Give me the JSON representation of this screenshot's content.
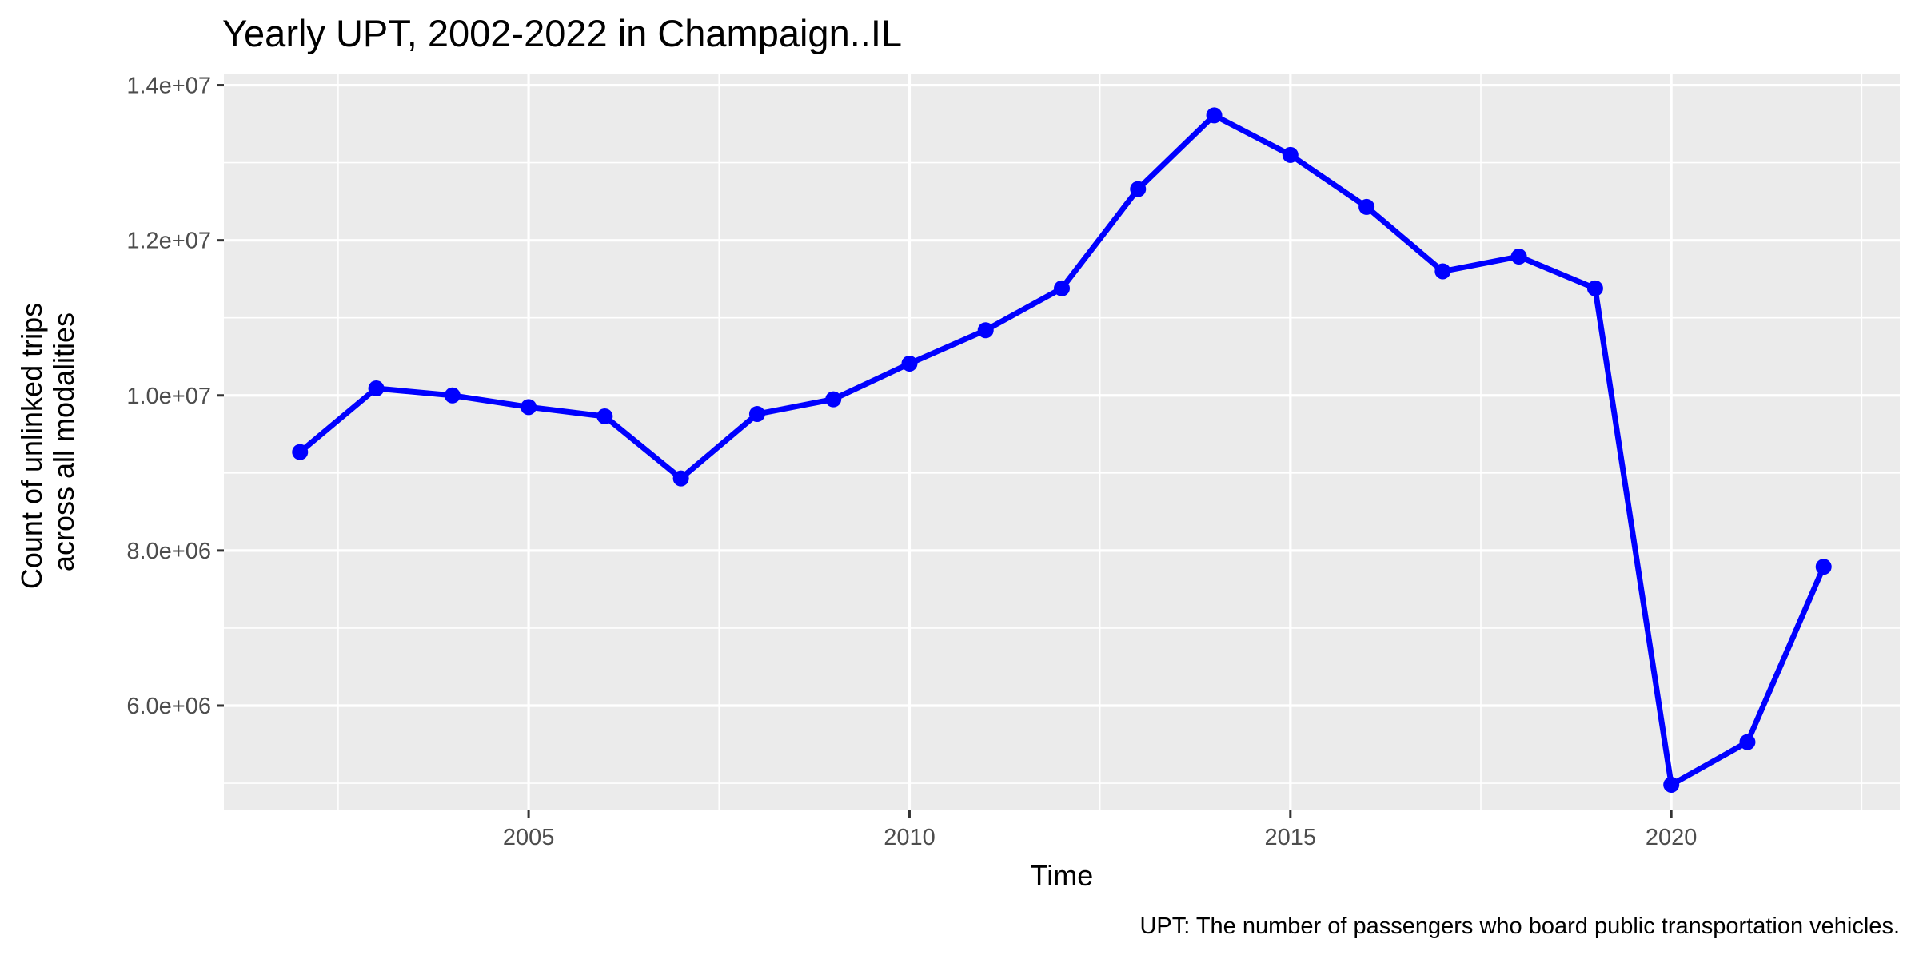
{
  "chart_data": {
    "type": "line",
    "title": "Yearly UPT, 2002-2022 in Champaign..IL",
    "xlabel": "Time",
    "ylabel_lines": [
      "Count of unlinked trips",
      "across all modalities"
    ],
    "caption": "UPT: The number of passengers who board public transportation vehicles.",
    "x": [
      2002,
      2003,
      2004,
      2005,
      2006,
      2007,
      2008,
      2009,
      2010,
      2011,
      2012,
      2013,
      2014,
      2015,
      2016,
      2017,
      2018,
      2019,
      2020,
      2021,
      2022
    ],
    "y": [
      9270000,
      10090000,
      10000000,
      9850000,
      9730000,
      8930000,
      9760000,
      9950000,
      10410000,
      10840000,
      11380000,
      12660000,
      13610000,
      13100000,
      12430000,
      11600000,
      11790000,
      11380000,
      4980000,
      5530000,
      7790000
    ],
    "xlim": [
      2001,
      2023
    ],
    "ylim": [
      4650000,
      14150000
    ],
    "x_ticks": [
      2005,
      2010,
      2015,
      2020
    ],
    "x_tick_labels": [
      "2005",
      "2010",
      "2015",
      "2020"
    ],
    "x_minor_ticks": [
      2002.5,
      2007.5,
      2012.5,
      2017.5,
      2022.5
    ],
    "y_ticks": [
      6000000,
      8000000,
      10000000,
      12000000,
      14000000
    ],
    "y_tick_labels": [
      "6.0e+06",
      "8.0e+06",
      "1.0e+07",
      "1.2e+07",
      "1.4e+07"
    ],
    "y_minor_ticks": [
      5000000,
      7000000,
      9000000,
      11000000,
      13000000
    ],
    "grid": true,
    "legend": "none",
    "line_color": "#0000FF"
  }
}
